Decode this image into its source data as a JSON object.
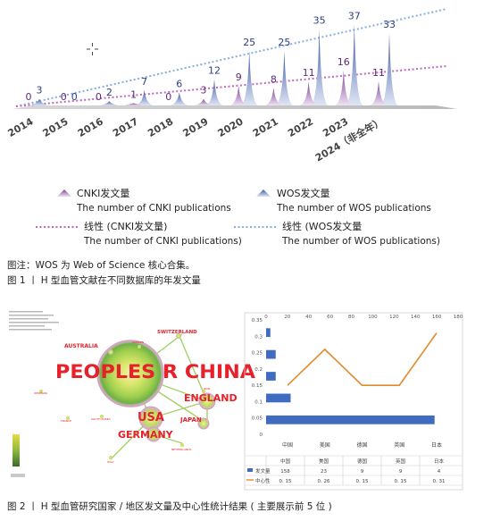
{
  "chart_data": [
    {
      "type": "area",
      "categories": [
        "2014",
        "2015",
        "2016",
        "2017",
        "2018",
        "2019",
        "2020",
        "2021",
        "2022",
        "2023",
        "2024（非全年）"
      ],
      "series": [
        {
          "name": "CNKI发文量",
          "name_en": "The number of CNKI publications",
          "values": [
            0,
            0,
            0,
            1,
            0,
            3,
            9,
            8,
            11,
            16,
            11
          ],
          "color": "#7b3f99"
        },
        {
          "name": "WOS发文量",
          "name_en": "The number of WOS publications",
          "values": [
            3,
            0,
            2,
            7,
            6,
            12,
            25,
            25,
            35,
            37,
            33
          ],
          "color": "#3e5ea8"
        }
      ],
      "trendlines": [
        {
          "name": "线性 (CNKI发文量)",
          "name_en": "The number of CNKI publications)",
          "color": "#b34fb0"
        },
        {
          "name": "线性 (WOS发文量",
          "name_en": "The number of WOS publications)",
          "color": "#7aa7dd"
        }
      ],
      "ylim": [
        0,
        42
      ]
    },
    {
      "type": "bar",
      "categories": [
        "中国",
        "美国",
        "德国",
        "英国",
        "日本"
      ],
      "series": [
        {
          "name": "发文量",
          "values": [
            158,
            23,
            9,
            9,
            4
          ],
          "color": "#3f6cc0"
        },
        {
          "name": "中心性",
          "values": [
            0.15,
            0.26,
            0.15,
            0.15,
            0.31
          ],
          "color": "#e38a2e"
        }
      ],
      "top_axis_ticks": [
        "0",
        "20",
        "40",
        "60",
        "80",
        "100",
        "120",
        "140",
        "160",
        "180"
      ],
      "left_axis_ticks": [
        "0",
        "0.05",
        "0.1",
        "0.15",
        "0.2",
        "0.25",
        "0.3",
        "0.35"
      ],
      "table_rows": [
        {
          "label": "发文量",
          "cells": [
            "158",
            "23",
            "9",
            "9",
            "4"
          ]
        },
        {
          "label": "中心性",
          "cells": [
            "0. 15",
            "0. 26",
            "0. 15",
            "0. 15",
            "0. 31"
          ]
        }
      ],
      "xlim_top": [
        0,
        180
      ],
      "ylim_left": [
        0,
        0.35
      ]
    }
  ],
  "network": {
    "nodes": [
      {
        "label": "PEOPLES R CHINA",
        "color": "#e8202a"
      },
      {
        "label": "USA",
        "color": "#e8202a"
      },
      {
        "label": "ENGLAND",
        "color": "#e8202a"
      },
      {
        "label": "GERMANY",
        "color": "#e8202a"
      },
      {
        "label": "SWITZERLAND",
        "color": "#e8202a"
      },
      {
        "label": "AUSTRALIA",
        "color": "#e8202a"
      },
      {
        "label": "JAPAN",
        "color": "#e8202a"
      },
      {
        "label": "SWEDEN",
        "color": "#e8202a"
      },
      {
        "label": "IRAN",
        "color": "#e8202a"
      },
      {
        "label": "DENMARK",
        "color": "#e8202a"
      },
      {
        "label": "FRANCE",
        "color": "#e8202a"
      },
      {
        "label": "SOUTH KOREA",
        "color": "#e8202a"
      },
      {
        "label": "NETHERLANDS",
        "color": "#e8202a"
      },
      {
        "label": "ITALY",
        "color": "#e8202a"
      }
    ]
  },
  "captions": {
    "note1": "图注：WOS 为 Web of Science 核心合集。",
    "fig1": "图 1 丨 H 型血管文献在不同数据库的年发文量",
    "fig2": "图 2 丨 H 型血管研究国家 / 地区发文量及中心性统计结果 ( 主要展示前 5 位 )"
  }
}
